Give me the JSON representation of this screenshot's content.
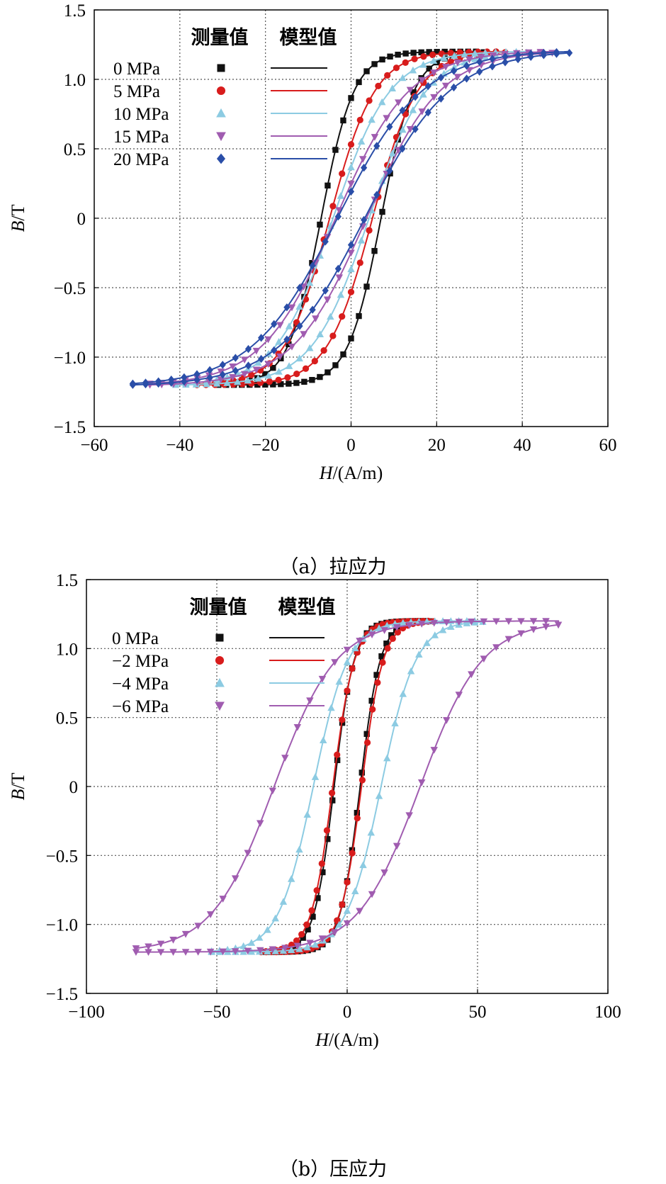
{
  "figure": {
    "caption_a": "（a）拉应力",
    "caption_b": "（b）压应力"
  },
  "colors": {
    "black": "#111111",
    "red": "#d81c1c",
    "lightblue": "#8ccbe2",
    "purple": "#a05cb0",
    "darkblue": "#2a4ea8"
  },
  "chart_data": [
    {
      "type": "scatter",
      "title": "（a）拉应力",
      "xlabel_italic": "H",
      "xlabel_unit": "/(A/m)",
      "ylabel_italic": "B",
      "ylabel_unit": "/T",
      "xlim": [
        -60,
        60
      ],
      "ylim": [
        -1.5,
        1.5
      ],
      "xticks": [
        -60,
        -40,
        -20,
        0,
        20,
        40,
        60
      ],
      "xtick_labels": [
        "−60",
        "−40",
        "−20",
        "0",
        "20",
        "40",
        "60"
      ],
      "yticks": [
        -1.5,
        -1.0,
        -0.5,
        0,
        0.5,
        1.0,
        1.5
      ],
      "ytick_labels": [
        "−1.5",
        "−1.0",
        "−0.5",
        "0",
        "0.5",
        "1.0",
        "1.5"
      ],
      "grid": true,
      "legend_header_measured": "测量值",
      "legend_header_model": "模型值",
      "legend_position": "top-left",
      "series": [
        {
          "name": "0 MPa",
          "marker": "square",
          "color": "#111111",
          "Hmax": 31,
          "Hc": 7,
          "sharpness": 0.13
        },
        {
          "name": "5 MPa",
          "marker": "circle",
          "color": "#d81c1c",
          "Hmax": 36,
          "Hc": 5,
          "sharpness": 0.095
        },
        {
          "name": "10 MPa",
          "marker": "triangle-up",
          "color": "#8ccbe2",
          "Hmax": 41,
          "Hc": 4.2,
          "sharpness": 0.075
        },
        {
          "name": "15 MPa",
          "marker": "triangle-down",
          "color": "#a05cb0",
          "Hmax": 47,
          "Hc": 3.6,
          "sharpness": 0.058
        },
        {
          "name": "20 MPa",
          "marker": "diamond",
          "color": "#2a4ea8",
          "Hmax": 51,
          "Hc": 3.2,
          "sharpness": 0.05
        }
      ]
    },
    {
      "type": "scatter",
      "title": "（b）压应力",
      "xlabel_italic": "H",
      "xlabel_unit": "/(A/m)",
      "ylabel_italic": "B",
      "ylabel_unit": "/T",
      "xlim": [
        -100,
        100
      ],
      "ylim": [
        -1.5,
        1.5
      ],
      "xticks": [
        -100,
        -50,
        0,
        50,
        100
      ],
      "xtick_labels": [
        "−100",
        "−50",
        "0",
        "50",
        "100"
      ],
      "yticks": [
        -1.5,
        -1.0,
        -0.5,
        0,
        0.5,
        1.0,
        1.5
      ],
      "ytick_labels": [
        "−1.5",
        "−1.0",
        "−0.5",
        "0",
        "0.5",
        "1.0",
        "1.5"
      ],
      "grid": true,
      "legend_header_measured": "测量值",
      "legend_header_model": "模型值",
      "legend_position": "top-left",
      "series": [
        {
          "name": "0 MPa",
          "marker": "square",
          "color": "#111111",
          "Hmax": 32,
          "Hc": 5,
          "sharpness": 0.13
        },
        {
          "name": "−2 MPa",
          "marker": "circle",
          "color": "#d81c1c",
          "Hmax": 33,
          "Hc": 5.5,
          "sharpness": 0.12
        },
        {
          "name": "−4 MPa",
          "marker": "triangle-up",
          "color": "#8ccbe2",
          "Hmax": 52,
          "Hc": 13,
          "sharpness": 0.075
        },
        {
          "name": "−6 MPa",
          "marker": "triangle-down",
          "color": "#a05cb0",
          "Hmax": 81,
          "Hc": 28,
          "sharpness": 0.042
        }
      ]
    }
  ]
}
